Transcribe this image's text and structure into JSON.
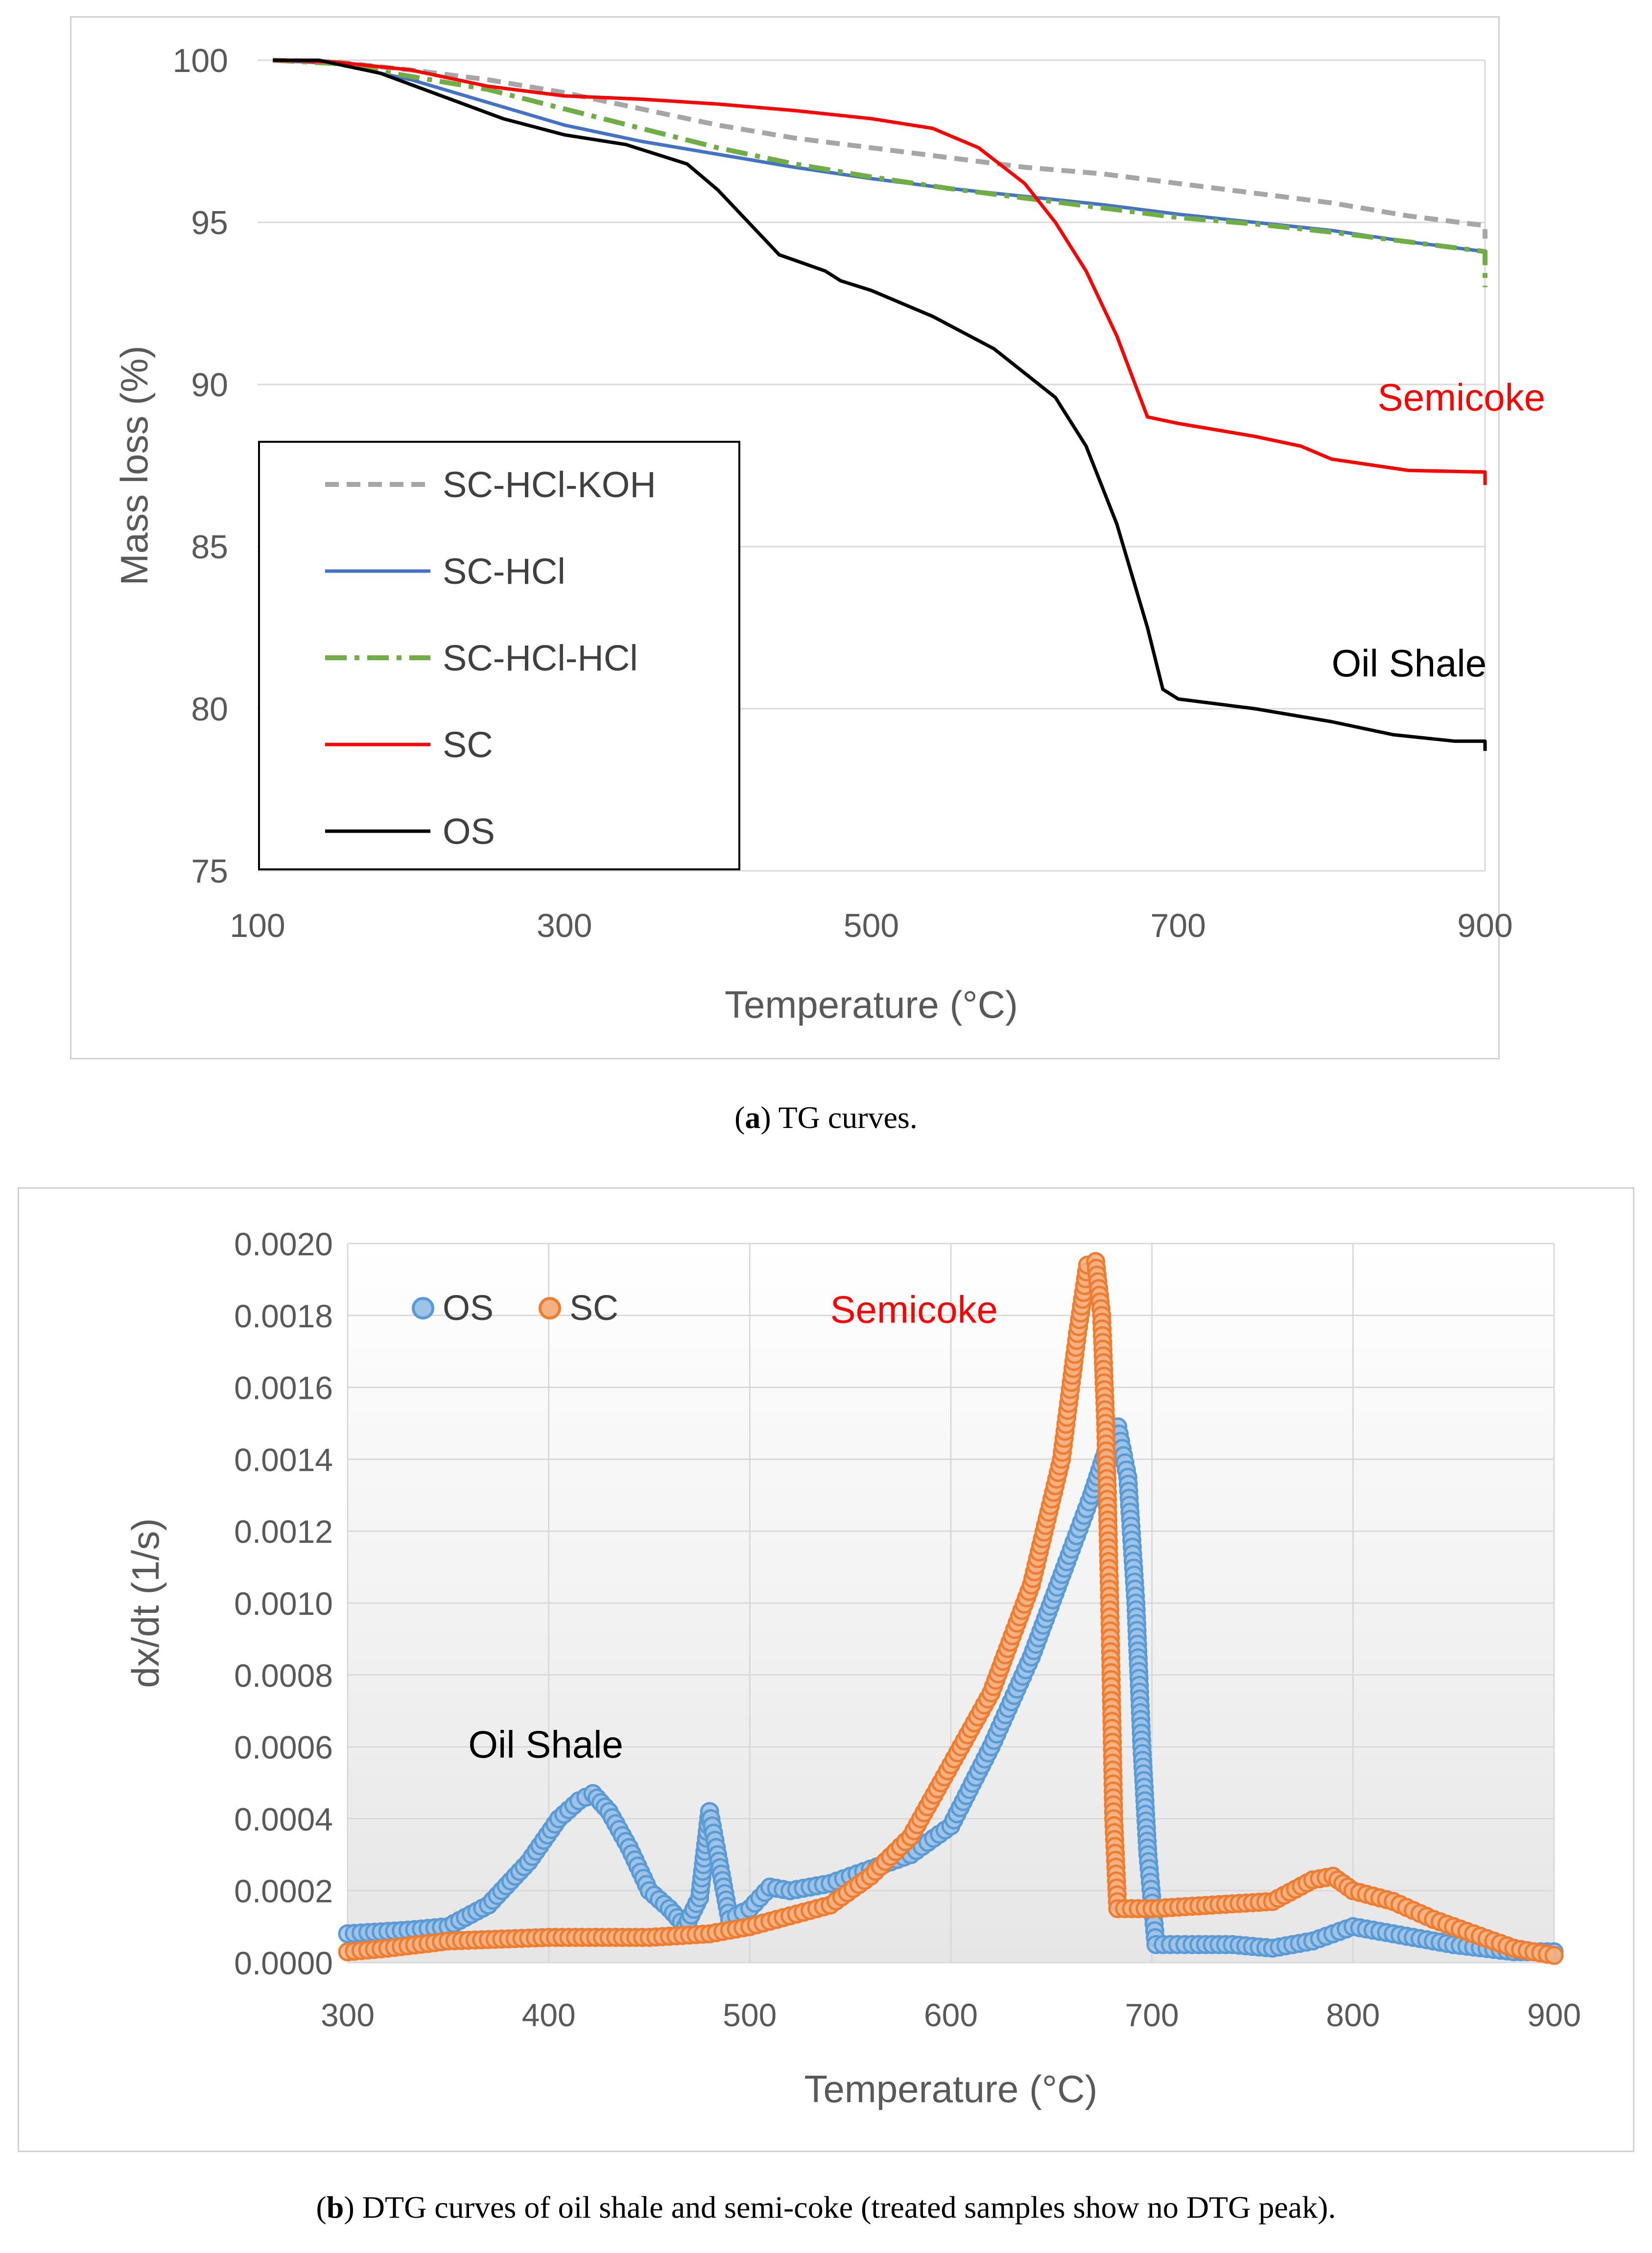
{
  "chart_data": [
    {
      "type": "line",
      "panel": "a",
      "xlabel": "Temperature (°C)",
      "ylabel": "Mass loss (%)",
      "xlim": [
        100,
        900
      ],
      "ylim": [
        75,
        100
      ],
      "x_ticks": [
        100,
        300,
        500,
        700,
        900
      ],
      "y_ticks": [
        75,
        80,
        85,
        90,
        95,
        100
      ],
      "grid": "horizontal",
      "legend_position": "bottom-left",
      "annotations": [
        {
          "text": "Semicoke",
          "x": 830,
          "y": 89.2,
          "color": "#ff0000"
        },
        {
          "text": "Oil Shale",
          "x": 800,
          "y": 81.0,
          "color": "#000000"
        }
      ],
      "series": [
        {
          "name": "SC-HCl-KOH",
          "color": "#a6a6a6",
          "dash": "dash",
          "x": [
            110,
            150,
            200,
            250,
            300,
            350,
            400,
            450,
            500,
            550,
            600,
            650,
            700,
            750,
            800,
            850,
            900,
            900
          ],
          "y": [
            100,
            99.95,
            99.7,
            99.4,
            99.0,
            98.5,
            98.0,
            97.6,
            97.3,
            97.0,
            96.7,
            96.5,
            96.2,
            95.9,
            95.6,
            95.2,
            94.9,
            94.5
          ]
        },
        {
          "name": "SC-HCl",
          "color": "#4472c4",
          "dash": "solid",
          "x": [
            110,
            150,
            200,
            250,
            300,
            350,
            400,
            450,
            500,
            550,
            600,
            650,
            700,
            750,
            800,
            850,
            900,
            900
          ],
          "y": [
            100,
            99.9,
            99.4,
            98.7,
            98.0,
            97.5,
            97.1,
            96.7,
            96.35,
            96.05,
            95.8,
            95.55,
            95.25,
            95.0,
            94.75,
            94.4,
            94.1,
            94.0
          ]
        },
        {
          "name": "SC-HCl-HCl",
          "color": "#70ad47",
          "dash": "dashdot",
          "x": [
            110,
            150,
            200,
            250,
            300,
            350,
            400,
            450,
            500,
            550,
            600,
            650,
            700,
            750,
            800,
            850,
            900,
            900
          ],
          "y": [
            100,
            99.9,
            99.5,
            99.1,
            98.5,
            97.9,
            97.3,
            96.8,
            96.4,
            96.05,
            95.75,
            95.45,
            95.15,
            94.95,
            94.7,
            94.4,
            94.1,
            93.0
          ]
        },
        {
          "name": "SC",
          "color": "#ff0000",
          "dash": "solid",
          "x": [
            110,
            150,
            200,
            250,
            300,
            350,
            400,
            450,
            500,
            540,
            570,
            600,
            620,
            640,
            660,
            680,
            700,
            750,
            780,
            800,
            850,
            900,
            900
          ],
          "y": [
            100,
            99.95,
            99.7,
            99.2,
            98.9,
            98.8,
            98.65,
            98.45,
            98.2,
            97.9,
            97.3,
            96.2,
            95.0,
            93.5,
            91.5,
            89.0,
            88.8,
            88.4,
            88.1,
            87.7,
            87.35,
            87.3,
            86.9
          ]
        },
        {
          "name": "OS",
          "color": "#000000",
          "dash": "solid",
          "x": [
            110,
            140,
            180,
            220,
            260,
            300,
            340,
            380,
            400,
            420,
            440,
            470,
            480,
            500,
            540,
            580,
            620,
            640,
            660,
            680,
            690,
            700,
            750,
            800,
            840,
            880,
            900,
            900
          ],
          "y": [
            100,
            100,
            99.6,
            98.9,
            98.2,
            97.7,
            97.4,
            96.8,
            96.0,
            95.0,
            94.0,
            93.5,
            93.2,
            92.9,
            92.1,
            91.1,
            89.6,
            88.1,
            85.7,
            82.5,
            80.6,
            80.3,
            80.0,
            79.6,
            79.2,
            79.0,
            79.0,
            78.7
          ]
        }
      ]
    },
    {
      "type": "scatter",
      "panel": "b",
      "xlabel": "Temperature (°C)",
      "ylabel": "dx/dt (1/s)",
      "xlim": [
        300,
        900
      ],
      "ylim": [
        0,
        0.002
      ],
      "x_ticks": [
        300,
        400,
        500,
        600,
        700,
        800,
        900
      ],
      "y_ticks": [
        "0.0000",
        "0.0002",
        "0.0004",
        "0.0006",
        "0.0008",
        "0.0010",
        "0.0012",
        "0.0014",
        "0.0016",
        "0.0018",
        "0.0020"
      ],
      "grid": "both",
      "legend_position": "top-left",
      "annotations": [
        {
          "text": "Semicoke",
          "x": 540,
          "y": 0.00178,
          "color": "#ff0000"
        },
        {
          "text": "Oil Shale",
          "x": 360,
          "y": 0.00057,
          "color": "#000000"
        }
      ],
      "series": [
        {
          "name": "OS",
          "color": "#5b9bd5",
          "x": [
            300,
            330,
            350,
            370,
            390,
            405,
            415,
            422,
            430,
            440,
            450,
            460,
            468,
            475,
            480,
            484,
            490,
            500,
            510,
            520,
            540,
            560,
            580,
            600,
            620,
            640,
            660,
            670,
            677,
            683,
            688,
            692,
            695,
            698,
            702,
            720,
            740,
            760,
            780,
            800,
            820,
            850,
            880,
            900
          ],
          "y": [
            8e-05,
            9e-05,
            0.0001,
            0.00016,
            0.00028,
            0.0004,
            0.00045,
            0.00047,
            0.00042,
            0.00032,
            0.0002,
            0.00015,
            0.0001,
            0.00018,
            0.00042,
            0.0003,
            0.00012,
            0.00015,
            0.00021,
            0.0002,
            0.00022,
            0.00026,
            0.0003,
            0.00038,
            0.0006,
            0.00085,
            0.00115,
            0.0013,
            0.00142,
            0.00149,
            0.00135,
            0.001,
            0.0006,
            0.0003,
            5e-05,
            5e-05,
            5e-05,
            4e-05,
            6e-05,
            0.0001,
            8e-05,
            5e-05,
            3e-05,
            3e-05
          ]
        },
        {
          "name": "SC",
          "color": "#ed7d31",
          "x": [
            300,
            320,
            350,
            400,
            450,
            480,
            500,
            520,
            540,
            560,
            580,
            600,
            620,
            640,
            655,
            663,
            668,
            672,
            675,
            677,
            679,
            681,
            683,
            700,
            730,
            760,
            780,
            790,
            800,
            820,
            840,
            860,
            880,
            900
          ],
          "y": [
            3e-05,
            4e-05,
            6e-05,
            7e-05,
            7e-05,
            8e-05,
            0.0001,
            0.00013,
            0.00016,
            0.00024,
            0.00035,
            0.00055,
            0.00075,
            0.00105,
            0.0014,
            0.00175,
            0.00194,
            0.00195,
            0.0018,
            0.0015,
            0.001,
            0.0004,
            0.00015,
            0.00015,
            0.00016,
            0.00017,
            0.00023,
            0.00024,
            0.0002,
            0.00017,
            0.00012,
            8e-05,
            4e-05,
            2e-05
          ]
        }
      ]
    }
  ],
  "captions": {
    "a_label": "a",
    "a_text": "TG curves.",
    "b_label": "b",
    "b_text": "DTG curves of oil shale and semi-coke (treated samples show no DTG peak)."
  }
}
